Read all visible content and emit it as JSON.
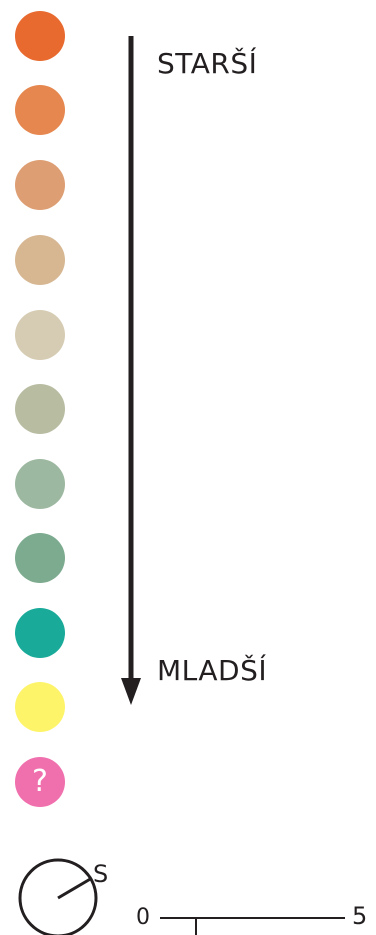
{
  "legend": {
    "colors": [
      "#e86a2f",
      "#e5874f",
      "#dd9e73",
      "#d6b792",
      "#d6ccb3",
      "#b8bda2",
      "#9db8a0",
      "#7dab8f",
      "#19aa99",
      "#fdf46a",
      "#f06fad"
    ],
    "unknown_label": "?"
  },
  "age_axis": {
    "top_label": "STARŠÍ",
    "bottom_label": "MLADŠÍ"
  },
  "compass": {
    "label": "S"
  },
  "scale_bar": {
    "start_label": "0",
    "end_label": "5"
  }
}
